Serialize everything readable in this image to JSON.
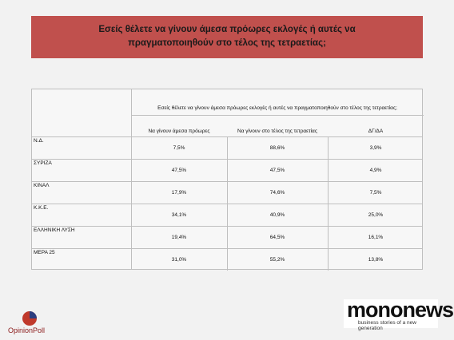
{
  "header": {
    "title": "Εσείς θέλετε να γίνουν άμεσα πρόωρες εκλογές ή αυτές να πραγματοποιηθούν στο τέλος της τετραετίας;"
  },
  "table": {
    "question": "Εσείς θέλετε να γίνουν άμεσα πρόωρες εκλογές ή αυτές να πραγματοποιηθούν στο τέλος της τετραετίας;",
    "columns": [
      "Να γίνουν άμεσα πρόωρες",
      "Να γίνουν στο τέλος της τετραετίας",
      "ΔΓ/ΔΑ"
    ],
    "rows": [
      {
        "label": "Ν.Δ.",
        "values": [
          "7,5%",
          "88,6%",
          "3,9%"
        ]
      },
      {
        "label": "ΣΥΡΙΖΑ",
        "values": [
          "47,5%",
          "47,5%",
          "4,9%"
        ]
      },
      {
        "label": "ΚΙΝΑΛ",
        "values": [
          "17,9%",
          "74,6%",
          "7,5%"
        ]
      },
      {
        "label": "Κ.Κ.Ε.",
        "values": [
          "34,1%",
          "40,9%",
          "25,0%"
        ]
      },
      {
        "label": "ΕΛΛΗΝΙΚΗ ΛΥΣΗ",
        "values": [
          "19,4%",
          "64,5%",
          "16,1%"
        ]
      },
      {
        "label": "ΜΕΡΑ 25",
        "values": [
          "31,0%",
          "55,2%",
          "13,8%"
        ]
      }
    ]
  },
  "logos": {
    "left": "OpinionPoll",
    "right": "mononews",
    "tagline": "business stories of a new generation"
  }
}
